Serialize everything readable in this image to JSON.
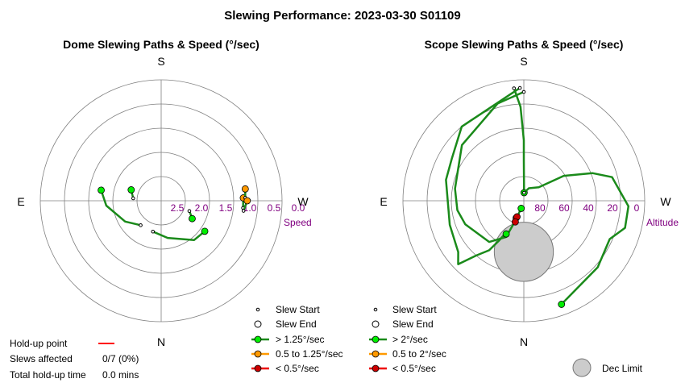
{
  "figure_title": "Slewing Performance: 2023-03-30 S01109",
  "colors": {
    "fast": "#00ee00",
    "medium": "#ff9900",
    "slow": "#ee0000",
    "path": "#1a8a1a",
    "grid": "#808080",
    "axis_purple": "#800080",
    "dec_limit_fill": "#cccccc",
    "holdup": "#ff0000"
  },
  "chart_data": [
    {
      "type": "polar",
      "title": "Dome Slewing Paths & Speed (°/sec)",
      "compass": {
        "S": "S",
        "N": "N",
        "E": "E",
        "W": "W"
      },
      "radial_axis": {
        "label": "Speed",
        "ticks": [
          "2.5",
          "2.0",
          "1.5",
          "1.0",
          "0.5",
          "0.0"
        ]
      },
      "slews": [
        {
          "path": [
            [
              2.3,
              195
            ],
            [
              2.15,
              170
            ],
            [
              1.8,
              140
            ],
            [
              1.75,
              125
            ]
          ],
          "category": "fast"
        },
        {
          "path": [
            [
              2.3,
              220
            ],
            [
              2.05,
              240
            ],
            [
              1.7,
              265
            ],
            [
              1.55,
              280
            ]
          ],
          "category": "fast"
        },
        {
          "path": [
            [
              2.4,
              275
            ],
            [
              2.3,
              290
            ]
          ],
          "category": "fast"
        },
        {
          "path": [
            [
              2.35,
              110
            ],
            [
              2.2,
              120
            ]
          ],
          "category": "fast"
        },
        {
          "path": [
            [
              1.0,
              95
            ],
            [
              1.0,
              88
            ]
          ],
          "category": "medium"
        },
        {
          "path": [
            [
              0.95,
              88
            ],
            [
              0.93,
              82
            ]
          ],
          "category": "medium"
        },
        {
          "path": [
            [
              0.98,
              97
            ],
            [
              0.9,
              90
            ]
          ],
          "category": "medium"
        }
      ],
      "legend": [
        {
          "label": "Slew Start",
          "kind": "start"
        },
        {
          "label": "Slew End",
          "kind": "end"
        },
        {
          "label": "> 1.25°/sec",
          "kind": "fast"
        },
        {
          "label": "0.5 to 1.25°/sec",
          "kind": "medium"
        },
        {
          "label": "< 0.5°/sec",
          "kind": "slow"
        }
      ],
      "holdup": {
        "point_label": "Hold-up point",
        "slews_label": "Slews affected",
        "slews_value": "0/7 (0%)",
        "time_label": "Total hold-up time",
        "time_value": "0.0 mins"
      }
    },
    {
      "type": "polar",
      "title": "Scope Slewing Paths & Speed (°/sec)",
      "compass": {
        "S": "S",
        "N": "N",
        "E": "E",
        "W": "W"
      },
      "radial_axis": {
        "label": "Altitude",
        "ticks": [
          "80",
          "60",
          "40",
          "20",
          "0"
        ]
      },
      "dec_limit": {
        "center_alt": 52,
        "center_az": 0,
        "radius_deg": 22,
        "label": "Dec Limit"
      },
      "slews": [
        {
          "path": [
            [
              6,
              355
            ],
            [
              20,
              358
            ],
            [
              45,
              360
            ],
            [
              60,
              0
            ],
            [
              84,
              2
            ]
          ],
          "category": "fast"
        },
        {
          "path": [
            [
              84,
              2
            ],
            [
              80,
              22
            ],
            [
              75,
              48
            ],
            [
              55,
              58
            ],
            [
              35,
              68
            ],
            [
              22,
              75
            ],
            [
              12,
              93
            ],
            [
              12,
              105
            ],
            [
              20,
              114
            ],
            [
              16,
              132
            ],
            [
              8,
              160
            ]
          ],
          "category": "fast"
        },
        {
          "path": [
            [
              9,
              360
            ],
            [
              15,
              345
            ],
            [
              28,
              312
            ],
            [
              38,
              280
            ],
            [
              40,
              262
            ],
            [
              43,
              248
            ],
            [
              50,
              220
            ],
            [
              60,
              206
            ],
            [
              74,
              203
            ],
            [
              84,
              199
            ]
          ],
          "category": "fast"
        },
        {
          "path": [
            [
              6,
              358
            ],
            [
              18,
              320
            ],
            [
              28,
              300
            ],
            [
              30,
              285
            ],
            [
              32,
              252
            ],
            [
              28,
              232
            ],
            [
              22,
              226
            ],
            [
              36,
              221
            ],
            [
              45,
              215
            ],
            [
              55,
              212
            ],
            [
              61,
              210
            ],
            [
              62,
              208
            ]
          ],
          "category": "fast"
        }
      ],
      "end_points": [
        {
          "alt": 76,
          "az": 204,
          "category": "slow"
        },
        {
          "alt": 77,
          "az": 203,
          "category": "slow"
        },
        {
          "alt": 73,
          "az": 202,
          "category": "slow"
        }
      ],
      "legend": [
        {
          "label": "Slew Start",
          "kind": "start"
        },
        {
          "label": "Slew End",
          "kind": "end"
        },
        {
          "label": "> 2°/sec",
          "kind": "fast"
        },
        {
          "label": "0.5 to 2°/sec",
          "kind": "medium"
        },
        {
          "label": "< 0.5°/sec",
          "kind": "slow"
        }
      ]
    }
  ]
}
